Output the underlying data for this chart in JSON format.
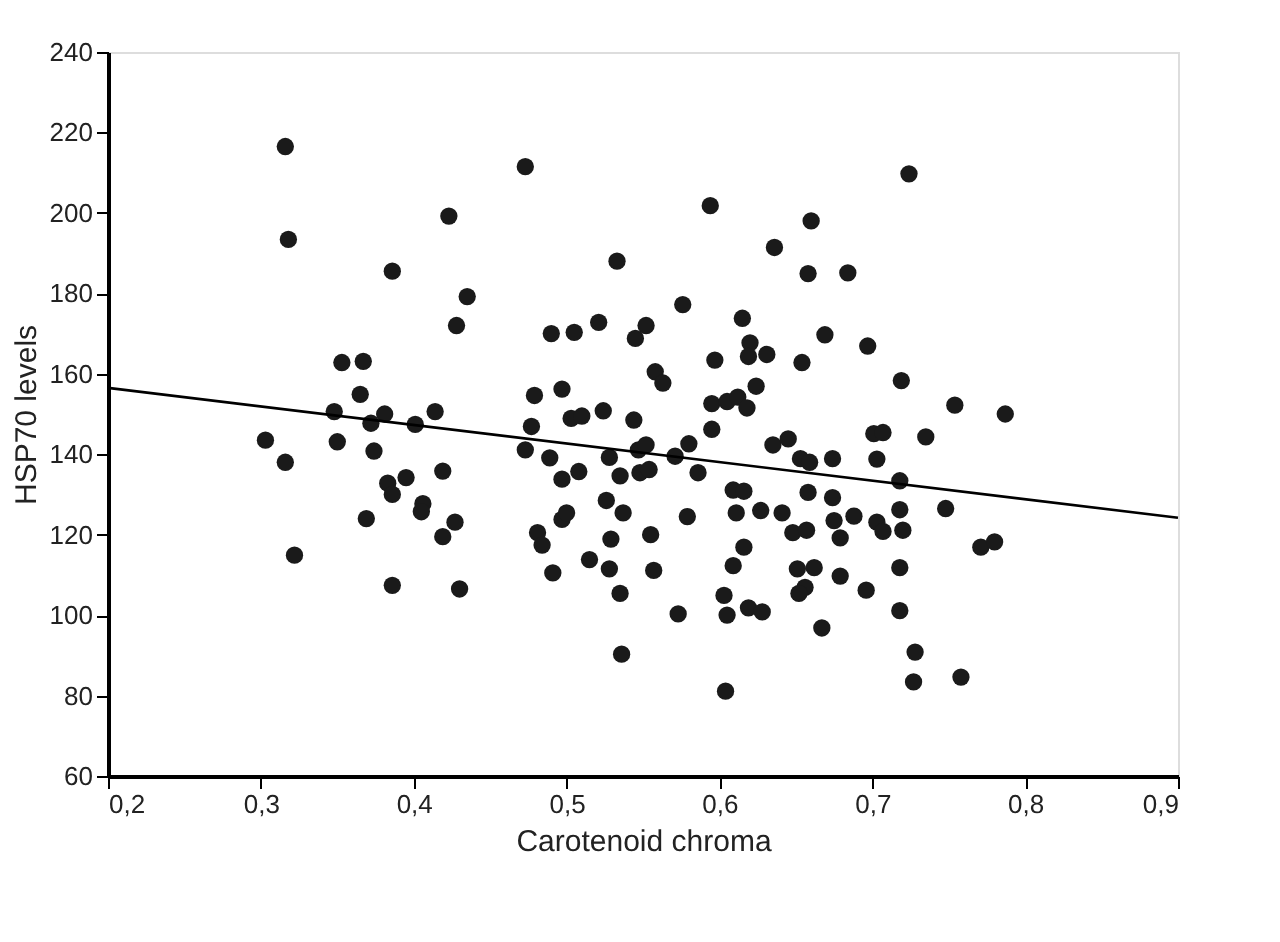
{
  "chart_data": {
    "type": "scatter",
    "xlabel": "Carotenoid chroma",
    "ylabel": "HSP70 levels",
    "xlim": [
      0.2,
      0.9
    ],
    "ylim": [
      60,
      240
    ],
    "xticks": [
      {
        "value": 0.2,
        "label": "0,2"
      },
      {
        "value": 0.3,
        "label": "0,3"
      },
      {
        "value": 0.4,
        "label": "0,4"
      },
      {
        "value": 0.5,
        "label": "0,5"
      },
      {
        "value": 0.6,
        "label": "0,6"
      },
      {
        "value": 0.7,
        "label": "0,7"
      },
      {
        "value": 0.8,
        "label": "0,8"
      },
      {
        "value": 0.9,
        "label": "0,9"
      }
    ],
    "yticks": [
      60,
      80,
      100,
      120,
      140,
      160,
      180,
      200,
      220,
      240
    ],
    "grid": false,
    "series": [
      {
        "color": "#1a1a1a",
        "marker": "circle",
        "x": [
          0.316,
          0.318,
          0.386,
          0.353,
          0.367,
          0.365,
          0.348,
          0.35,
          0.303,
          0.316,
          0.322,
          0.372,
          0.381,
          0.401,
          0.414,
          0.374,
          0.383,
          0.386,
          0.395,
          0.369,
          0.406,
          0.405,
          0.419,
          0.386,
          0.423,
          0.473,
          0.435,
          0.428,
          0.427,
          0.419,
          0.43,
          0.533,
          0.49,
          0.505,
          0.521,
          0.552,
          0.545,
          0.576,
          0.594,
          0.66,
          0.636,
          0.658,
          0.615,
          0.62,
          0.619,
          0.631,
          0.654,
          0.597,
          0.558,
          0.563,
          0.624,
          0.479,
          0.497,
          0.503,
          0.51,
          0.524,
          0.544,
          0.595,
          0.605,
          0.612,
          0.618,
          0.595,
          0.477,
          0.473,
          0.489,
          0.497,
          0.508,
          0.528,
          0.547,
          0.552,
          0.535,
          0.548,
          0.554,
          0.571,
          0.58,
          0.586,
          0.635,
          0.645,
          0.653,
          0.659,
          0.609,
          0.616,
          0.658,
          0.611,
          0.627,
          0.641,
          0.648,
          0.657,
          0.526,
          0.537,
          0.579,
          0.497,
          0.5,
          0.481,
          0.484,
          0.529,
          0.555,
          0.515,
          0.528,
          0.557,
          0.491,
          0.616,
          0.609,
          0.651,
          0.662,
          0.656,
          0.652,
          0.603,
          0.605,
          0.619,
          0.628,
          0.535,
          0.573,
          0.536,
          0.604,
          0.667,
          0.724,
          0.684,
          0.669,
          0.697,
          0.719,
          0.754,
          0.787,
          0.701,
          0.707,
          0.735,
          0.674,
          0.703,
          0.718,
          0.674,
          0.718,
          0.748,
          0.688,
          0.675,
          0.679,
          0.703,
          0.707,
          0.72,
          0.718,
          0.679,
          0.696,
          0.718,
          0.728,
          0.727,
          0.758,
          0.771,
          0.78
        ],
        "values": [
          216.5,
          193.4,
          185.5,
          162.8,
          163.1,
          154.9,
          150.6,
          143.1,
          143.5,
          138,
          114.9,
          147.7,
          150,
          147.4,
          150.6,
          140.8,
          132.8,
          130,
          134.2,
          124,
          127.7,
          125.7,
          135.8,
          107.4,
          199.2,
          211.5,
          179.2,
          172,
          123.1,
          119.5,
          106.5,
          188,
          170,
          170.3,
          172.8,
          172,
          168.8,
          177.2,
          201.8,
          198,
          191.4,
          184.9,
          173.8,
          167.7,
          164.3,
          164.8,
          162.8,
          163.4,
          160.5,
          157.7,
          156.9,
          154.6,
          156.2,
          148.9,
          149.5,
          150.8,
          148.5,
          152.6,
          153.1,
          154.2,
          151.5,
          146.2,
          146.9,
          141.1,
          139.1,
          133.8,
          135.7,
          139.2,
          141.1,
          142.3,
          134.6,
          135.4,
          136.2,
          139.5,
          142.6,
          135.4,
          142.3,
          143.8,
          138.9,
          138,
          131.1,
          130.8,
          130.5,
          125.4,
          126,
          125.4,
          120.5,
          121.1,
          128.5,
          125.4,
          124.5,
          123.8,
          125.4,
          120.5,
          117.4,
          118.9,
          120,
          113.8,
          111.5,
          111.1,
          110.5,
          116.9,
          112.3,
          111.5,
          111.8,
          106.9,
          105.4,
          104.9,
          100,
          101.8,
          100.8,
          105.4,
          100.3,
          90.3,
          81.1,
          96.8,
          209.7,
          185.1,
          169.7,
          166.9,
          158.3,
          152.2,
          150,
          145.1,
          145.4,
          144.3,
          138.9,
          138.8,
          133.4,
          129.2,
          126.2,
          126.5,
          124.6,
          123.5,
          119.2,
          123.1,
          120.8,
          121.1,
          111.8,
          109.7,
          106.2,
          101.1,
          90.8,
          83.4,
          84.6,
          116.9,
          118.2
        ]
      },
      {
        "type": "line",
        "color": "#000000",
        "line_style": "solid",
        "marker": "none",
        "x": [
          0.2,
          0.9
        ],
        "values": [
          156.5,
          124.2
        ]
      }
    ]
  }
}
